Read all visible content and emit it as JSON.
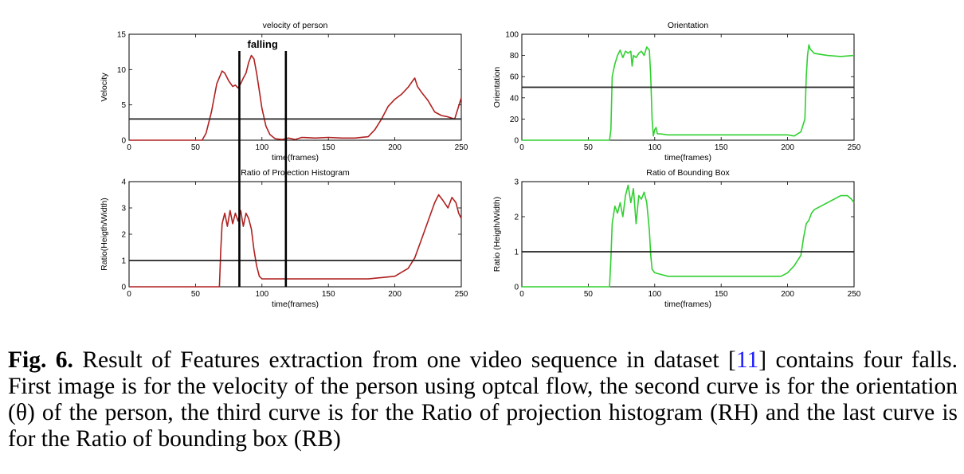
{
  "figure": {
    "caption_lead": "Fig. 6.",
    "caption_text_1": " Result of Features extraction from one video sequence in dataset [",
    "caption_ref": "11",
    "caption_text_2": "] contains four falls. First image is for the velocity of the person using optcal flow, the second curve is for the orientation (θ) of the person, the third curve is for the Ratio of projection histogram (RH) and the last curve is for the Ratio of bounding box (RB)"
  },
  "annotation": {
    "label": "falling",
    "x_start": 83,
    "x_end": 118
  },
  "chart_data": [
    {
      "type": "line",
      "title": "velocity of person",
      "xlabel": "time(frames)",
      "ylabel": "Velocity",
      "xlim": [
        0,
        250
      ],
      "ylim": [
        0,
        15
      ],
      "xticks": [
        0,
        50,
        100,
        150,
        200,
        250
      ],
      "yticks": [
        0,
        5,
        10,
        15
      ],
      "line_color": "#b02020",
      "threshold": 3,
      "x": [
        0,
        55,
        58,
        62,
        66,
        70,
        72,
        75,
        78,
        80,
        82,
        84,
        86,
        88,
        90,
        92,
        94,
        96,
        98,
        100,
        103,
        106,
        110,
        115,
        120,
        125,
        130,
        140,
        150,
        160,
        170,
        180,
        185,
        190,
        195,
        200,
        205,
        210,
        213,
        215,
        217,
        220,
        225,
        230,
        235,
        240,
        245,
        248,
        250
      ],
      "y": [
        0,
        0,
        1,
        4,
        8,
        9.8,
        9.5,
        8.4,
        7.6,
        7.8,
        7.4,
        8,
        8.8,
        9.5,
        11,
        12,
        11.5,
        9.5,
        7,
        4.5,
        2,
        0.8,
        0.2,
        0.1,
        0.3,
        0.1,
        0.4,
        0.3,
        0.4,
        0.3,
        0.3,
        0.5,
        1.5,
        3,
        4.8,
        5.8,
        6.5,
        7.5,
        8.3,
        8.8,
        7.6,
        6.8,
        5.6,
        4,
        3.5,
        3.3,
        3,
        4.8,
        6
      ]
    },
    {
      "type": "line",
      "title": "Orientation",
      "xlabel": "time(frames)",
      "ylabel": "Orientation",
      "xlim": [
        0,
        250
      ],
      "ylim": [
        0,
        100
      ],
      "xticks": [
        0,
        50,
        100,
        150,
        200,
        250
      ],
      "yticks": [
        0,
        20,
        40,
        60,
        80,
        100
      ],
      "line_color": "#30d030",
      "threshold": 50,
      "x": [
        0,
        66,
        67,
        68,
        70,
        72,
        74,
        76,
        78,
        80,
        82,
        83,
        84,
        86,
        88,
        90,
        92,
        94,
        96,
        97,
        98,
        99,
        100,
        101,
        102,
        104,
        110,
        120,
        140,
        160,
        180,
        200,
        205,
        210,
        213,
        214,
        215,
        216,
        217,
        220,
        225,
        230,
        240,
        250
      ],
      "y": [
        0,
        0,
        10,
        60,
        72,
        80,
        85,
        78,
        84,
        82,
        84,
        70,
        80,
        78,
        82,
        84,
        80,
        88,
        85,
        60,
        20,
        4,
        10,
        12,
        6,
        6,
        5,
        5,
        5,
        5,
        5,
        5,
        4,
        8,
        20,
        60,
        80,
        90,
        86,
        82,
        81,
        80,
        79,
        80
      ]
    },
    {
      "type": "line",
      "title": "Ratio of Projection Histogram",
      "xlabel": "time(frames)",
      "ylabel": "Ratio(Heigth/Width)",
      "xlim": [
        0,
        250
      ],
      "ylim": [
        0,
        4
      ],
      "xticks": [
        0,
        50,
        100,
        150,
        200,
        250
      ],
      "yticks": [
        0,
        1,
        2,
        3,
        4
      ],
      "line_color": "#b02020",
      "threshold": 1,
      "x": [
        0,
        68,
        69,
        70,
        72,
        74,
        76,
        78,
        80,
        82,
        84,
        86,
        88,
        90,
        92,
        94,
        96,
        98,
        100,
        105,
        110,
        120,
        140,
        160,
        180,
        200,
        210,
        215,
        220,
        225,
        230,
        233,
        236,
        240,
        243,
        246,
        248,
        250
      ],
      "y": [
        0,
        0,
        1.4,
        2.4,
        2.8,
        2.3,
        2.9,
        2.4,
        2.8,
        2.5,
        2.9,
        2.3,
        2.8,
        2.6,
        2.2,
        1.4,
        0.8,
        0.4,
        0.3,
        0.3,
        0.3,
        0.3,
        0.3,
        0.3,
        0.3,
        0.4,
        0.7,
        1.1,
        1.8,
        2.5,
        3.2,
        3.5,
        3.3,
        3.0,
        3.4,
        3.2,
        2.8,
        2.6
      ]
    },
    {
      "type": "line",
      "title": "Ratio of Bounding Box",
      "xlabel": "time(frames)",
      "ylabel": "Ratio (Heigth/Width)",
      "xlim": [
        0,
        250
      ],
      "ylim": [
        0,
        3
      ],
      "xticks": [
        0,
        50,
        100,
        150,
        200,
        250
      ],
      "yticks": [
        0,
        1,
        2,
        3
      ],
      "line_color": "#30d030",
      "threshold": 1,
      "x": [
        0,
        66,
        67,
        68,
        70,
        72,
        74,
        76,
        78,
        80,
        82,
        84,
        86,
        88,
        90,
        92,
        94,
        96,
        97,
        98,
        100,
        105,
        110,
        120,
        140,
        160,
        180,
        195,
        200,
        205,
        210,
        212,
        214,
        216,
        218,
        220,
        225,
        230,
        235,
        240,
        245,
        248,
        250
      ],
      "y": [
        0,
        0,
        0.8,
        1.8,
        2.3,
        2.1,
        2.4,
        2.0,
        2.6,
        2.9,
        2.4,
        2.8,
        1.8,
        2.6,
        2.5,
        2.7,
        2.4,
        1.6,
        0.9,
        0.5,
        0.4,
        0.35,
        0.3,
        0.3,
        0.3,
        0.3,
        0.3,
        0.3,
        0.4,
        0.6,
        0.9,
        1.4,
        1.8,
        1.9,
        2.1,
        2.2,
        2.3,
        2.4,
        2.5,
        2.6,
        2.6,
        2.5,
        2.4
      ]
    }
  ]
}
